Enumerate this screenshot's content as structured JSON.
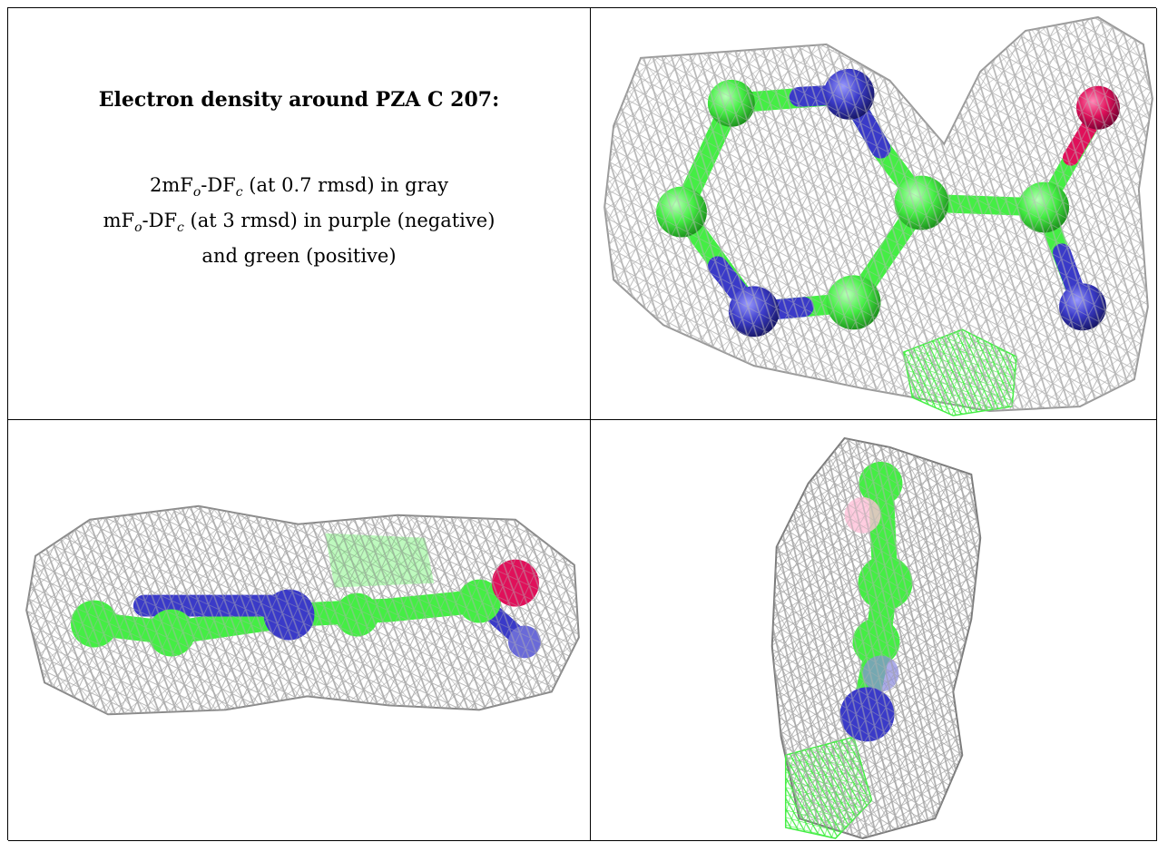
{
  "panel_text": {
    "title": "Electron density around PZA C 207:",
    "line1": {
      "a": "2mF",
      "sub1": "o",
      "b": "-DF",
      "sub2": "c",
      "c": " (at 0.7 rmsd) in gray"
    },
    "line2": {
      "a": "mF",
      "sub1": "o",
      "b": "-DF",
      "sub2": "c",
      "c": " (at 3 rmsd) in purple (negative)"
    },
    "line3": "and green (positive)"
  },
  "colors": {
    "mesh_gray": "#b8b8b8",
    "mesh_dark": "#8c8c8c",
    "mesh_green": "#44ee44",
    "carbon": "#44ee44",
    "nitrogen": "#3a3ac8",
    "oxygen": "#e0105a"
  },
  "views": [
    "top",
    "side",
    "end"
  ]
}
